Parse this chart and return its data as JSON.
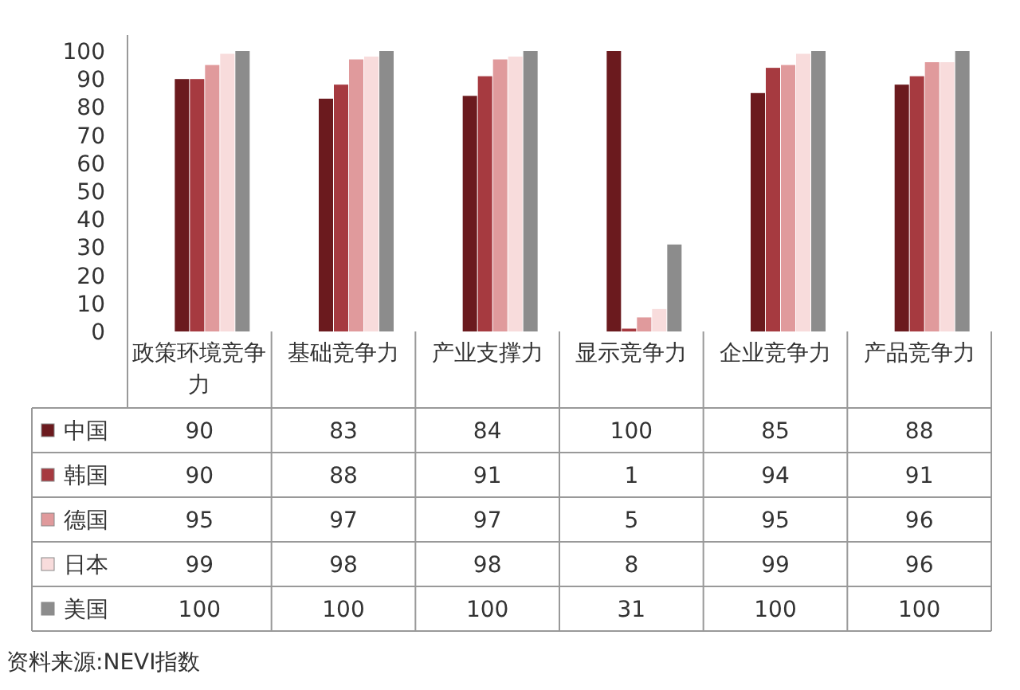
{
  "chart_data": {
    "type": "bar",
    "categories": [
      "政策环境竞争力",
      "基础竞争力",
      "产业支撑力",
      "显示竞争力",
      "企业竞争力",
      "产品竞争力"
    ],
    "series": [
      {
        "name": "中国",
        "color": "#6b1a1e",
        "values": [
          90,
          83,
          84,
          100,
          85,
          88
        ]
      },
      {
        "name": "韩国",
        "color": "#a63a40",
        "values": [
          90,
          88,
          91,
          1,
          94,
          91
        ]
      },
      {
        "name": "德国",
        "color": "#e09a9c",
        "values": [
          95,
          97,
          97,
          5,
          95,
          96
        ]
      },
      {
        "name": "日本",
        "color": "#f8dcdc",
        "values": [
          99,
          98,
          98,
          8,
          99,
          96
        ]
      },
      {
        "name": "美国",
        "color": "#8c8c8c",
        "values": [
          100,
          100,
          100,
          31,
          100,
          100
        ]
      }
    ],
    "ylim": [
      0,
      100
    ],
    "yticks": [
      0,
      10,
      20,
      30,
      40,
      50,
      60,
      70,
      80,
      90,
      100
    ],
    "grid": false,
    "legend": "bottom",
    "data_labels": true,
    "annotations": [
      "资料来源:NEVI指数"
    ]
  }
}
